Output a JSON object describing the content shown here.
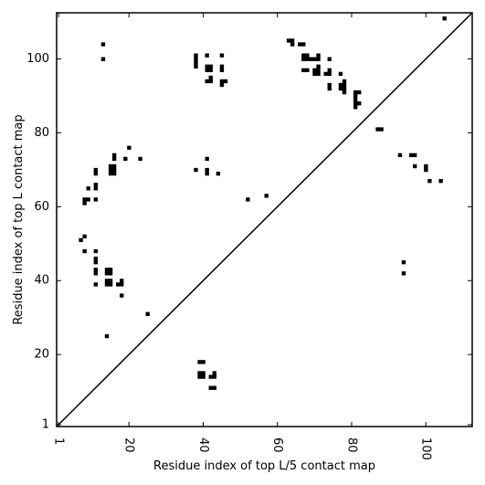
{
  "chart_data": {
    "type": "heatmap",
    "title": "",
    "xlabel": "Residue index of top L/5 contact map",
    "ylabel": "Residue index of top L contact map",
    "xlim": [
      0.5,
      112.5
    ],
    "ylim": [
      0.5,
      112.5
    ],
    "x_ticks": [
      1,
      20,
      40,
      60,
      80,
      100
    ],
    "y_ticks": [
      1,
      20,
      40,
      60,
      80,
      100
    ],
    "x_tick_labels": [
      "1",
      "20",
      "40",
      "60",
      "80",
      "100"
    ],
    "y_tick_labels": [
      "1",
      "20",
      "40",
      "60",
      "80",
      "100"
    ],
    "x_tick_rotation_deg": -90,
    "grid": false,
    "diagonal_line": {
      "from": [
        0.5,
        0.5
      ],
      "to": [
        112.5,
        112.5
      ],
      "color": "#000000"
    },
    "cell_color": "#000000",
    "upper_left_cells": [
      [
        13,
        104
      ],
      [
        13,
        100
      ],
      [
        38,
        98
      ],
      [
        38,
        99
      ],
      [
        38,
        100
      ],
      [
        38,
        101
      ],
      [
        41,
        101
      ],
      [
        41,
        97
      ],
      [
        41,
        98
      ],
      [
        42,
        97
      ],
      [
        42,
        98
      ],
      [
        41,
        94
      ],
      [
        42,
        95
      ],
      [
        42,
        94
      ],
      [
        45,
        101
      ],
      [
        45,
        98
      ],
      [
        45,
        97
      ],
      [
        45,
        94
      ],
      [
        45,
        93
      ],
      [
        46,
        94
      ],
      [
        63,
        105
      ],
      [
        64,
        105
      ],
      [
        64,
        104
      ],
      [
        66,
        104
      ],
      [
        67,
        104
      ],
      [
        67,
        101
      ],
      [
        67,
        100
      ],
      [
        68,
        101
      ],
      [
        68,
        100
      ],
      [
        69,
        100
      ],
      [
        70,
        100
      ],
      [
        71,
        101
      ],
      [
        71,
        100
      ],
      [
        67,
        97
      ],
      [
        68,
        97
      ],
      [
        70,
        97
      ],
      [
        70,
        96
      ],
      [
        71,
        97
      ],
      [
        71,
        96
      ],
      [
        71,
        98
      ],
      [
        73,
        96
      ],
      [
        74,
        96
      ],
      [
        74,
        97
      ],
      [
        74,
        100
      ],
      [
        74,
        93
      ],
      [
        74,
        92
      ],
      [
        77,
        96
      ],
      [
        77,
        93
      ],
      [
        77,
        92
      ],
      [
        78,
        92
      ],
      [
        78,
        93
      ],
      [
        78,
        94
      ],
      [
        78,
        91
      ],
      [
        81,
        91
      ],
      [
        81,
        90
      ],
      [
        81,
        89
      ],
      [
        81,
        88
      ],
      [
        81,
        87
      ],
      [
        82,
        91
      ],
      [
        82,
        88
      ],
      [
        87,
        81
      ],
      [
        88,
        81
      ],
      [
        93,
        74
      ],
      [
        96,
        74
      ],
      [
        97,
        74
      ],
      [
        97,
        71
      ],
      [
        100,
        71
      ],
      [
        100,
        70
      ],
      [
        101,
        67
      ],
      [
        104,
        67
      ],
      [
        105,
        111
      ],
      [
        16,
        74
      ],
      [
        16,
        73
      ],
      [
        15,
        71
      ],
      [
        16,
        71
      ],
      [
        15,
        70
      ],
      [
        16,
        70
      ],
      [
        15,
        69
      ],
      [
        16,
        69
      ],
      [
        11,
        70
      ],
      [
        11,
        69
      ],
      [
        11,
        66
      ],
      [
        11,
        65
      ],
      [
        20,
        76
      ],
      [
        19,
        73
      ],
      [
        23,
        73
      ],
      [
        38,
        70
      ],
      [
        41,
        73
      ],
      [
        41,
        70
      ],
      [
        41,
        69
      ],
      [
        44,
        69
      ],
      [
        9,
        65
      ],
      [
        8,
        62
      ],
      [
        9,
        62
      ],
      [
        8,
        61
      ],
      [
        11,
        62
      ],
      [
        52,
        62
      ],
      [
        57,
        63
      ],
      [
        7,
        51
      ],
      [
        8,
        52
      ],
      [
        8,
        48
      ],
      [
        11,
        48
      ],
      [
        11,
        46
      ],
      [
        11,
        45
      ],
      [
        11,
        43
      ],
      [
        11,
        42
      ],
      [
        14,
        43
      ],
      [
        15,
        43
      ],
      [
        14,
        42
      ],
      [
        15,
        42
      ],
      [
        14,
        40
      ],
      [
        15,
        40
      ],
      [
        14,
        39
      ],
      [
        15,
        39
      ],
      [
        11,
        39
      ],
      [
        17,
        39
      ],
      [
        18,
        39
      ],
      [
        18,
        40
      ],
      [
        18,
        36
      ],
      [
        14,
        25
      ],
      [
        25,
        31
      ],
      [
        94,
        45
      ],
      [
        94,
        42
      ]
    ],
    "lower_right_cells": [
      [
        39,
        18
      ],
      [
        40,
        18
      ],
      [
        39,
        15
      ],
      [
        40,
        15
      ],
      [
        39,
        14
      ],
      [
        40,
        14
      ],
      [
        42,
        14
      ],
      [
        43,
        14
      ],
      [
        43,
        15
      ],
      [
        42,
        11
      ],
      [
        43,
        11
      ]
    ]
  }
}
